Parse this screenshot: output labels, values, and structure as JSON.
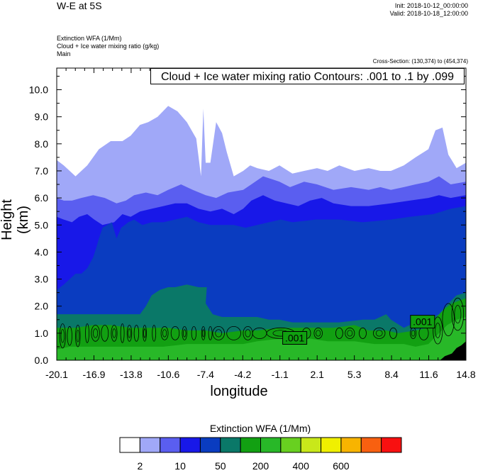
{
  "header": {
    "title": "W-E at 5S",
    "init": "Init: 2018-10-12_00:00:00",
    "valid": "Valid: 2018-10-18_12:00:00",
    "fields": [
      "Extinction WFA   (1/Mm)",
      "Cloud + Ice water mixing ratio   (g/kg)",
      "Main"
    ],
    "cross_section": "Cross-Section: (130,374) to (454,374)",
    "contour_info": "Cloud + Ice water mixing ratio Contours: .001 to .1 by .099"
  },
  "chart_data": {
    "type": "heatmap",
    "xlabel": "longitude",
    "ylabel": "Height (km)",
    "x_ticks": [
      "-20.1",
      "-16.9",
      "-13.8",
      "-10.6",
      "-7.4",
      "-4.2",
      "-1.1",
      "2.1",
      "5.3",
      "8.4",
      "11.6",
      "14.8"
    ],
    "y_ticks": [
      "0.0",
      "1.0",
      "2.0",
      "3.0",
      "4.0",
      "5.0",
      "6.0",
      "7.0",
      "8.0",
      "9.0",
      "10.0"
    ],
    "xlim": [
      -20.1,
      14.8
    ],
    "ylim": [
      0,
      10.8
    ],
    "contour_labels": [
      ".001",
      ".001"
    ],
    "colorbar": {
      "title": "Extinction WFA  (1/Mm)",
      "colors": [
        "#ffffff",
        "#a0a8f8",
        "#5a5ef0",
        "#1818e8",
        "#0a3cc0",
        "#0a7868",
        "#12a012",
        "#28b828",
        "#68d020",
        "#c8e81a",
        "#f0f000",
        "#f8b400",
        "#f86010",
        "#f81010"
      ],
      "labels": [
        "2",
        "10",
        "50",
        "200",
        "400",
        "600"
      ]
    },
    "layers": [
      {
        "name": "light",
        "color": "#a0a8f8",
        "top": [
          [
            -20.1,
            7.4
          ],
          [
            -19.5,
            7.2
          ],
          [
            -18.5,
            6.8
          ],
          [
            -17.5,
            7.2
          ],
          [
            -16.5,
            7.8
          ],
          [
            -15.5,
            8.1
          ],
          [
            -14.5,
            8.1
          ],
          [
            -13.8,
            8.3
          ],
          [
            -13.0,
            8.7
          ],
          [
            -12.3,
            8.8
          ],
          [
            -11.5,
            9.0
          ],
          [
            -10.6,
            9.4
          ],
          [
            -9.8,
            9.2
          ],
          [
            -9.0,
            8.8
          ],
          [
            -8.2,
            8.2
          ],
          [
            -7.8,
            6.8
          ],
          [
            -7.6,
            9.3
          ],
          [
            -7.4,
            7.3
          ],
          [
            -7.0,
            7.3
          ],
          [
            -6.5,
            8.8
          ],
          [
            -6.0,
            8.4
          ],
          [
            -5.6,
            7.7
          ],
          [
            -5.0,
            6.8
          ],
          [
            -4.2,
            7.0
          ],
          [
            -3.6,
            7.2
          ],
          [
            -3.0,
            7.1
          ],
          [
            -2.0,
            7.0
          ],
          [
            -1.1,
            7.2
          ],
          [
            0,
            6.9
          ],
          [
            1.0,
            7.0
          ],
          [
            2.1,
            7.1
          ],
          [
            3.0,
            7.0
          ],
          [
            4.0,
            7.2
          ],
          [
            5.3,
            7.0
          ],
          [
            6.5,
            7.1
          ],
          [
            7.5,
            7.0
          ],
          [
            8.4,
            7.0
          ],
          [
            9.5,
            7.2
          ],
          [
            10.5,
            7.5
          ],
          [
            11.6,
            7.8
          ],
          [
            12.2,
            8.5
          ],
          [
            12.8,
            8.6
          ],
          [
            13.3,
            7.6
          ],
          [
            14.0,
            7.1
          ],
          [
            14.8,
            7.3
          ]
        ]
      },
      {
        "name": "medium",
        "color": "#5a5ef0",
        "top": [
          [
            -20.1,
            6.0
          ],
          [
            -19.5,
            5.9
          ],
          [
            -18.8,
            5.9
          ],
          [
            -18.0,
            6.0
          ],
          [
            -17.0,
            6.1
          ],
          [
            -16.0,
            6.0
          ],
          [
            -15.0,
            5.8
          ],
          [
            -14.2,
            5.9
          ],
          [
            -13.5,
            6.1
          ],
          [
            -12.5,
            6.2
          ],
          [
            -11.5,
            6.1
          ],
          [
            -10.6,
            6.3
          ],
          [
            -9.5,
            6.5
          ],
          [
            -8.5,
            6.3
          ],
          [
            -7.4,
            6.1
          ],
          [
            -6.5,
            6.0
          ],
          [
            -5.5,
            6.2
          ],
          [
            -4.2,
            6.3
          ],
          [
            -3.5,
            6.5
          ],
          [
            -2.5,
            6.8
          ],
          [
            -1.1,
            6.6
          ],
          [
            -0.2,
            6.4
          ],
          [
            1.0,
            6.6
          ],
          [
            2.1,
            6.5
          ],
          [
            3.5,
            6.3
          ],
          [
            5.0,
            6.4
          ],
          [
            6.5,
            6.3
          ],
          [
            7.5,
            6.4
          ],
          [
            8.4,
            6.3
          ],
          [
            9.5,
            6.4
          ],
          [
            10.5,
            6.5
          ],
          [
            11.6,
            6.6
          ],
          [
            12.5,
            6.8
          ],
          [
            13.5,
            6.5
          ],
          [
            14.8,
            6.6
          ]
        ]
      },
      {
        "name": "blue",
        "color": "#1818e8",
        "top": [
          [
            -20.1,
            5.3
          ],
          [
            -19.5,
            5.2
          ],
          [
            -18.8,
            5.1
          ],
          [
            -18.2,
            5.3
          ],
          [
            -17.5,
            5.4
          ],
          [
            -16.9,
            5.2
          ],
          [
            -16.2,
            5.0
          ],
          [
            -15.2,
            5.1
          ],
          [
            -14.5,
            5.4
          ],
          [
            -13.8,
            5.3
          ],
          [
            -13.0,
            5.5
          ],
          [
            -12.0,
            5.6
          ],
          [
            -11.0,
            5.7
          ],
          [
            -10.0,
            5.8
          ],
          [
            -9.0,
            5.8
          ],
          [
            -8.0,
            5.6
          ],
          [
            -7.0,
            5.5
          ],
          [
            -6.0,
            5.6
          ],
          [
            -5.0,
            5.4
          ],
          [
            -4.2,
            5.6
          ],
          [
            -3.5,
            5.9
          ],
          [
            -2.5,
            6.1
          ],
          [
            -1.5,
            5.9
          ],
          [
            -0.5,
            5.8
          ],
          [
            0.5,
            5.7
          ],
          [
            1.5,
            5.9
          ],
          [
            2.5,
            6.0
          ],
          [
            3.5,
            5.8
          ],
          [
            5.0,
            5.7
          ],
          [
            6.5,
            5.7
          ],
          [
            8.4,
            5.8
          ],
          [
            10.0,
            5.9
          ],
          [
            11.6,
            6.0
          ],
          [
            12.5,
            6.1
          ],
          [
            13.5,
            6.0
          ],
          [
            14.8,
            6.1
          ]
        ]
      },
      {
        "name": "dark",
        "color": "#0a3cc0",
        "top": [
          [
            -20.1,
            2.6
          ],
          [
            -19.5,
            2.8
          ],
          [
            -19.0,
            3.0
          ],
          [
            -18.5,
            3.2
          ],
          [
            -18.0,
            3.2
          ],
          [
            -17.5,
            3.4
          ],
          [
            -17.0,
            3.8
          ],
          [
            -16.7,
            4.2
          ],
          [
            -16.5,
            4.5
          ],
          [
            -16.2,
            4.9
          ],
          [
            -15.8,
            5.0
          ],
          [
            -15.4,
            5.1
          ],
          [
            -15.0,
            4.5
          ],
          [
            -14.6,
            4.9
          ],
          [
            -14.0,
            5.1
          ],
          [
            -13.5,
            5.2
          ],
          [
            -12.8,
            5.0
          ],
          [
            -12.0,
            5.1
          ],
          [
            -11.0,
            5.1
          ],
          [
            -10.0,
            5.2
          ],
          [
            -9.0,
            5.3
          ],
          [
            -8.0,
            5.1
          ],
          [
            -7.0,
            5.0
          ],
          [
            -6.0,
            5.0
          ],
          [
            -5.0,
            5.0
          ],
          [
            -4.0,
            4.9
          ],
          [
            -3.0,
            5.0
          ],
          [
            -2.0,
            5.1
          ],
          [
            -1.0,
            5.2
          ],
          [
            0,
            5.1
          ],
          [
            2.0,
            5.2
          ],
          [
            4.0,
            5.2
          ],
          [
            6.0,
            5.1
          ],
          [
            8.4,
            5.2
          ],
          [
            10.0,
            5.3
          ],
          [
            12.0,
            5.4
          ],
          [
            13.5,
            5.6
          ],
          [
            14.8,
            5.7
          ]
        ]
      },
      {
        "name": "teal",
        "color": "#0a7868",
        "top": [
          [
            -20.1,
            1.7
          ],
          [
            -19.0,
            1.7
          ],
          [
            -18.0,
            1.7
          ],
          [
            -17.0,
            1.7
          ],
          [
            -16.0,
            1.7
          ],
          [
            -15.0,
            1.7
          ],
          [
            -14.0,
            1.7
          ],
          [
            -13.0,
            1.7
          ],
          [
            -12.5,
            2.0
          ],
          [
            -12.0,
            2.4
          ],
          [
            -11.3,
            2.6
          ],
          [
            -10.6,
            2.7
          ],
          [
            -10.0,
            2.7
          ],
          [
            -9.0,
            2.8
          ],
          [
            -8.0,
            2.7
          ],
          [
            -7.3,
            2.7
          ],
          [
            -7.4,
            2.1
          ],
          [
            -6.8,
            1.7
          ],
          [
            -6.0,
            1.6
          ],
          [
            -5.0,
            1.6
          ],
          [
            -4.0,
            1.6
          ],
          [
            -3.0,
            1.6
          ],
          [
            -2.0,
            1.5
          ],
          [
            -1.1,
            1.5
          ],
          [
            0,
            1.4
          ],
          [
            2.1,
            1.4
          ],
          [
            4.0,
            1.4
          ],
          [
            6.0,
            1.5
          ],
          [
            7.0,
            1.5
          ],
          [
            8.0,
            1.7
          ],
          [
            8.4,
            1.5
          ],
          [
            9.5,
            1.2
          ],
          [
            10.5,
            1.4
          ],
          [
            11.6,
            1.5
          ],
          [
            12.5,
            1.7
          ],
          [
            13.3,
            2.1
          ],
          [
            14.0,
            2.4
          ],
          [
            14.8,
            2.5
          ]
        ]
      },
      {
        "name": "green",
        "color": "#12a012",
        "top": [
          [
            -20.1,
            1.2
          ],
          [
            -18.5,
            1.2
          ],
          [
            -17.0,
            1.3
          ],
          [
            -15.5,
            1.3
          ],
          [
            -13.8,
            1.2
          ],
          [
            -12.5,
            1.2
          ],
          [
            -10.6,
            1.2
          ],
          [
            -9.0,
            1.1
          ],
          [
            -7.4,
            1.1
          ],
          [
            -6.0,
            1.0
          ],
          [
            -4.2,
            1.1
          ],
          [
            -3.0,
            1.1
          ],
          [
            -1.1,
            1.2
          ],
          [
            0,
            1.2
          ],
          [
            2.1,
            1.2
          ],
          [
            3.5,
            1.2
          ],
          [
            5.3,
            1.3
          ],
          [
            6.5,
            1.1
          ],
          [
            8.0,
            1.1
          ],
          [
            9.0,
            1.0
          ],
          [
            10.5,
            1.1
          ],
          [
            11.6,
            1.2
          ],
          [
            12.3,
            1.6
          ],
          [
            13.0,
            1.9
          ],
          [
            13.6,
            2.1
          ],
          [
            14.2,
            2.2
          ],
          [
            14.8,
            2.3
          ]
        ]
      },
      {
        "name": "lightgreen",
        "color": "#28b828",
        "top": [
          [
            -20.1,
            0.4
          ],
          [
            -19.0,
            0.5
          ],
          [
            -17.5,
            0.5
          ],
          [
            -16.0,
            0.5
          ],
          [
            -14.5,
            0.5
          ],
          [
            -13.0,
            0.5
          ],
          [
            -11.0,
            0.5
          ],
          [
            -9.0,
            0.6
          ],
          [
            -7.4,
            0.6
          ],
          [
            -5.5,
            0.6
          ],
          [
            -4.2,
            0.6
          ],
          [
            -3.0,
            0.7
          ],
          [
            -1.1,
            0.8
          ],
          [
            0,
            0.8
          ],
          [
            1.5,
            0.8
          ],
          [
            3.0,
            0.7
          ],
          [
            5.3,
            0.7
          ],
          [
            7.0,
            0.6
          ],
          [
            8.4,
            0.6
          ],
          [
            9.5,
            0.6
          ],
          [
            10.5,
            0.5
          ],
          [
            11.6,
            0.6
          ],
          [
            12.5,
            1.0
          ],
          [
            13.2,
            1.3
          ],
          [
            14.0,
            1.5
          ],
          [
            14.8,
            1.6
          ]
        ]
      },
      {
        "name": "black",
        "color": "#000000",
        "top": [
          [
            12.6,
            0
          ],
          [
            13.0,
            0.15
          ],
          [
            13.6,
            0.25
          ],
          [
            14.0,
            0.45
          ],
          [
            14.4,
            0.55
          ],
          [
            14.8,
            0.7
          ]
        ]
      }
    ]
  }
}
